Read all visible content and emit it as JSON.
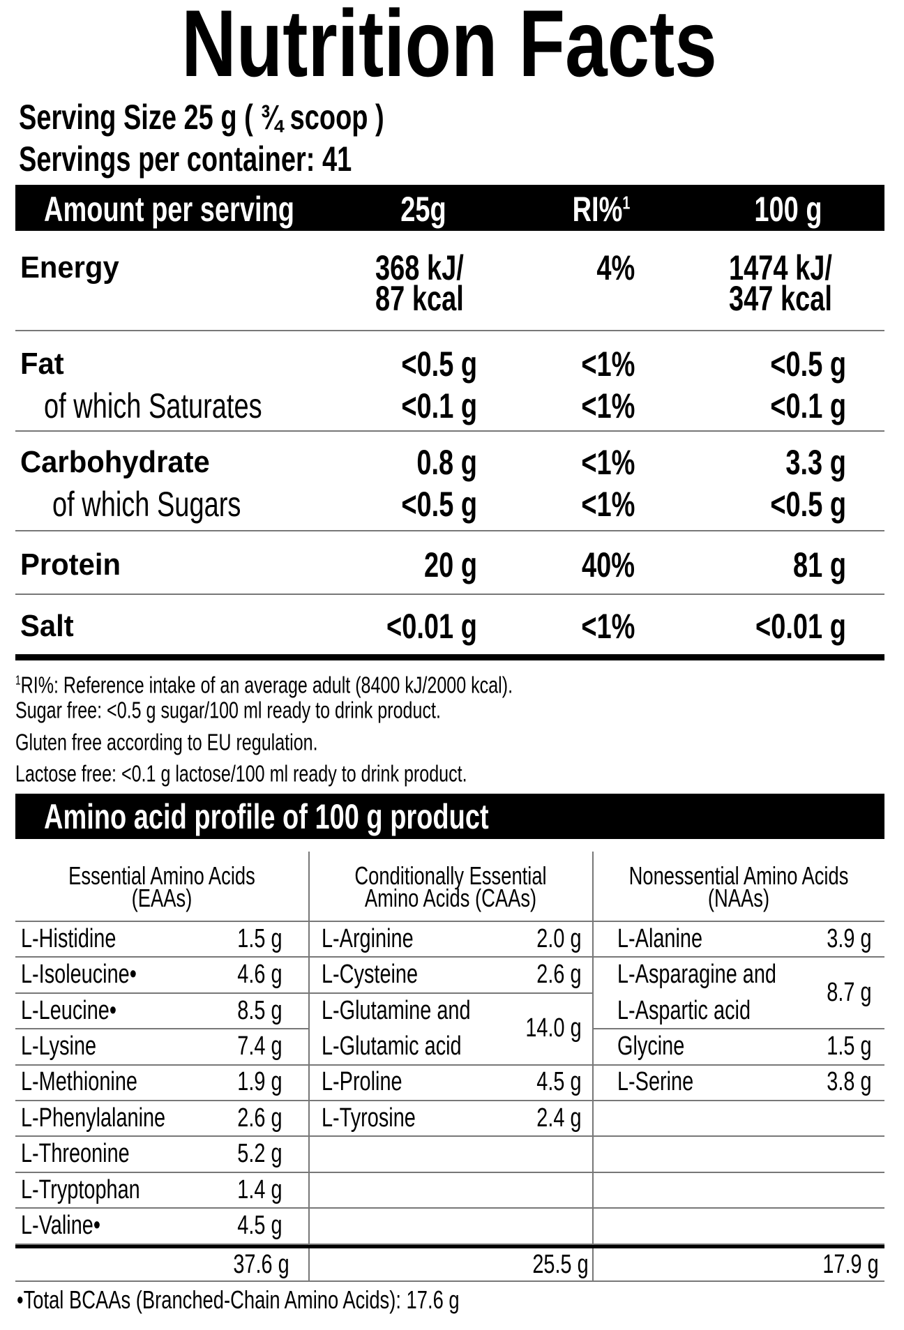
{
  "title": "Nutrition Facts",
  "serving_size": "Serving Size 25 g ( ¾ scoop )",
  "servings_per_container": "Servings per container: 41",
  "header": {
    "amount": "Amount per serving",
    "col1": "25g",
    "col2": "RI%",
    "col2_sup": "1",
    "col3": "100 g"
  },
  "nutrients": {
    "energy": {
      "label": "Energy",
      "v1a": "368 kJ/",
      "v1b": "87 kcal",
      "ri": "4%",
      "v2a": "1474 kJ/",
      "v2b": "347 kcal"
    },
    "fat": {
      "label": "Fat",
      "v1": "<0.5 g",
      "ri": "<1%",
      "v2": "<0.5 g"
    },
    "saturates": {
      "label": "of which Saturates",
      "v1": "<0.1 g",
      "ri": "<1%",
      "v2": "<0.1 g"
    },
    "carbohydrate": {
      "label": "Carbohydrate",
      "v1": "0.8 g",
      "ri": "<1%",
      "v2": "3.3 g"
    },
    "sugars": {
      "label": "of which Sugars",
      "v1": "<0.5 g",
      "ri": "<1%",
      "v2": "<0.5 g"
    },
    "protein": {
      "label": "Protein",
      "v1": "20 g",
      "ri": "40%",
      "v2": "81 g"
    },
    "salt": {
      "label": "Salt",
      "v1": "<0.01 g",
      "ri": "<1%",
      "v2": "<0.01 g"
    }
  },
  "footnotes": {
    "ri_sup": "1",
    "ri": "RI%: Reference intake of an average adult (8400 kJ/2000 kcal).",
    "sugar": "Sugar free: <0.5 g sugar/100 ml ready to drink product.",
    "gluten": "Gluten free according to EU regulation.",
    "lactose": "Lactose free: <0.1 g lactose/100 ml ready to drink product."
  },
  "amino": {
    "title": "Amino acid profile of 100 g product",
    "columns": [
      {
        "h1": "Essential Amino Acids",
        "h2": "(EAAs)",
        "total": "37.6 g",
        "items": [
          [
            "L-Histidine",
            "1.5 g"
          ],
          [
            "L-Isoleucine•",
            "4.6 g"
          ],
          [
            "L-Leucine•",
            "8.5 g"
          ],
          [
            "L-Lysine",
            "7.4 g"
          ],
          [
            "L-Methionine",
            "1.9 g"
          ],
          [
            "L-Phenylalanine",
            "2.6 g"
          ],
          [
            "L-Threonine",
            "5.2 g"
          ],
          [
            "L-Tryptophan",
            "1.4 g"
          ],
          [
            "L-Valine•",
            "4.5 g"
          ]
        ]
      },
      {
        "h1": "Conditionally Essential",
        "h2": "Amino Acids (CAAs)",
        "total": "25.5 g",
        "items": [
          [
            "L-Arginine",
            "2.0 g"
          ],
          [
            "L-Cysteine",
            "2.6 g"
          ],
          [
            "L-Glutamine and|L-Glutamic acid",
            "14.0 g"
          ],
          [
            "L-Proline",
            "4.5 g"
          ],
          [
            "L-Tyrosine",
            "2.4 g"
          ]
        ]
      },
      {
        "h1": "Nonessential Amino Acids",
        "h2": "(NAAs)",
        "total": "17.9 g",
        "items": [
          [
            "L-Alanine",
            "3.9 g"
          ],
          [
            "L-Asparagine and|L-Aspartic acid",
            "8.7 g"
          ],
          [
            "Glycine",
            "1.5 g"
          ],
          [
            "L-Serine",
            "3.8 g"
          ]
        ]
      }
    ],
    "bcaa_note": "•Total BCAAs (Branched-Chain Amino Acids): 17.6 g"
  }
}
